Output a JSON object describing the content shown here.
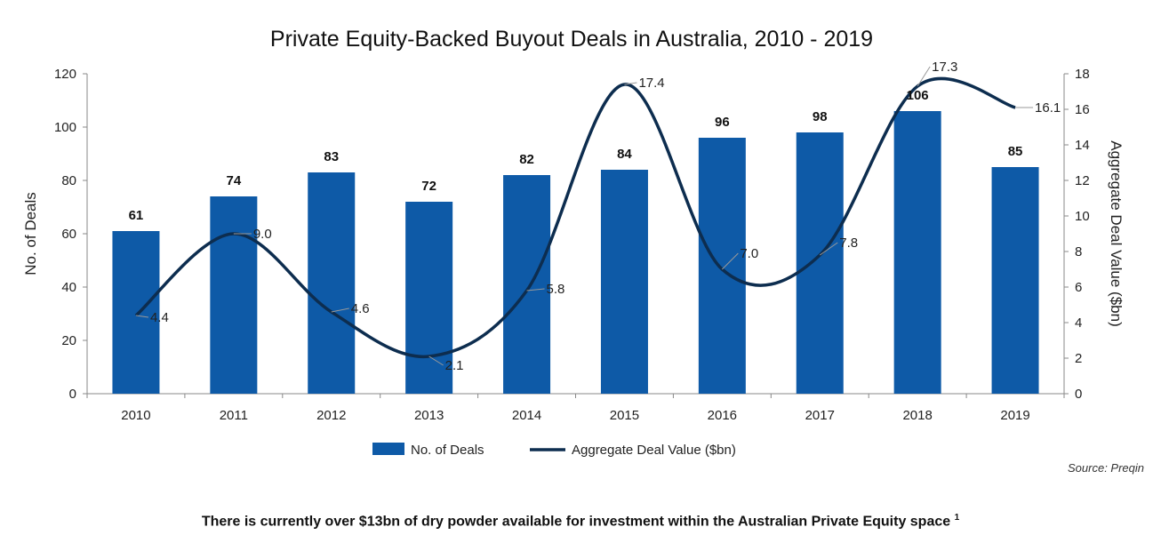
{
  "chart_data": {
    "type": "bar+line",
    "title": "Private Equity-Backed Buyout Deals in Australia, 2010 - 2019",
    "categories": [
      "2010",
      "2011",
      "2012",
      "2013",
      "2014",
      "2015",
      "2016",
      "2017",
      "2018",
      "2019"
    ],
    "series": [
      {
        "name": "No. of Deals",
        "type": "bar",
        "axis": "left",
        "color": "#0e5aa7",
        "values": [
          61,
          74,
          83,
          72,
          82,
          84,
          96,
          98,
          106,
          85
        ]
      },
      {
        "name": "Aggregate Deal Value ($bn)",
        "type": "line",
        "axis": "right",
        "color": "#0d2d4f",
        "values": [
          4.4,
          9.0,
          4.6,
          2.1,
          5.8,
          17.4,
          7.0,
          7.8,
          17.3,
          16.1
        ]
      }
    ],
    "ylabel_left": "No. of Deals",
    "ylabel_right": "Aggregate Deal Value ($bn)",
    "ylim_left": [
      0,
      120
    ],
    "yticks_left": [
      0,
      20,
      40,
      60,
      80,
      100,
      120
    ],
    "ylim_right": [
      0,
      18
    ],
    "yticks_right": [
      0,
      2,
      4,
      6,
      8,
      10,
      12,
      14,
      16,
      18
    ],
    "legend": [
      "No. of Deals",
      "Aggregate Deal Value ($bn)"
    ],
    "legend_position": "bottom",
    "grid": false
  },
  "source": "Source: Preqin",
  "footnote": {
    "text": "There is currently over $13bn of dry powder available for investment within the Australian Private Equity space",
    "ref": "1"
  }
}
